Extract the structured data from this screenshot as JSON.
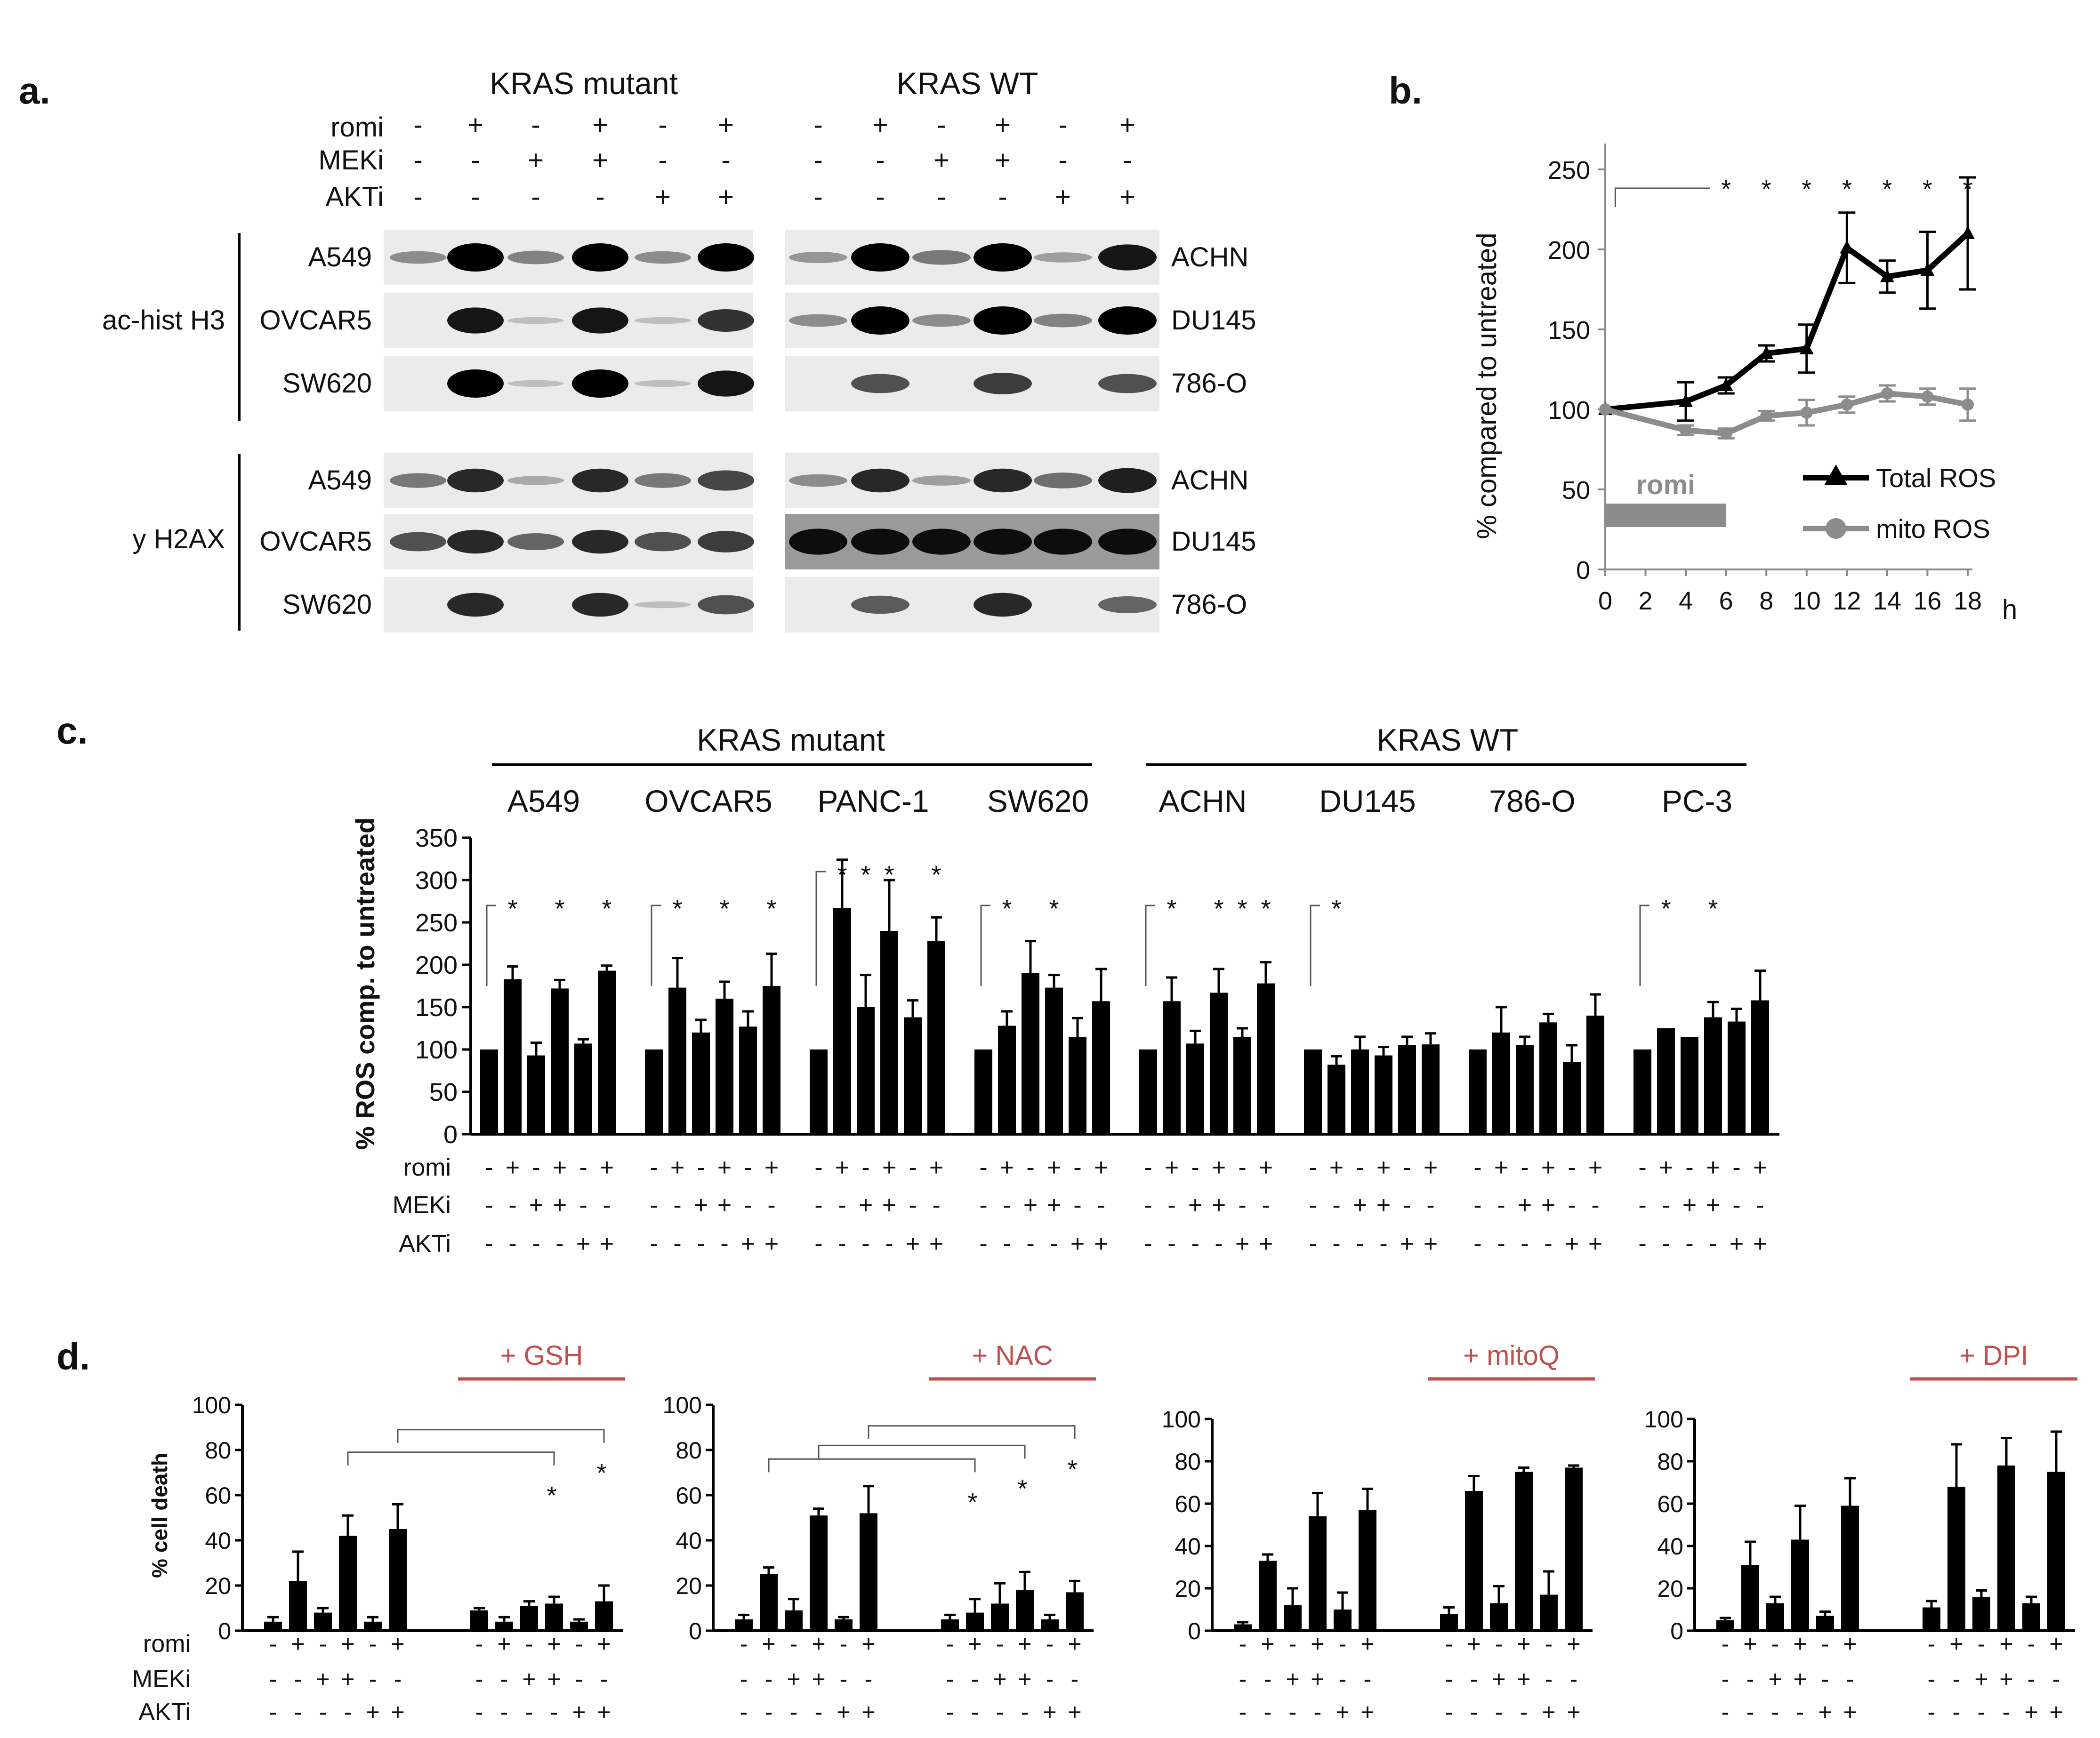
{
  "panel_labels": {
    "a": "a.",
    "b": "b.",
    "c": "c.",
    "d": "d."
  },
  "blot": {
    "groups": [
      "KRAS mutant",
      "KRAS WT"
    ],
    "treatment_labels": [
      "romi",
      "MEKi",
      "AKTi"
    ],
    "treatment_signs": [
      [
        "-",
        "+",
        "-",
        "+",
        "-",
        "+"
      ],
      [
        "-",
        "-",
        "+",
        "+",
        "-",
        "-"
      ],
      [
        "-",
        "-",
        "-",
        "-",
        "+",
        "+"
      ]
    ],
    "marker_labels": [
      "ac-hist H3",
      "y H2AX"
    ],
    "left_cells": [
      "A549",
      "OVCAR5",
      "SW620"
    ],
    "right_cells": [
      "ACHN",
      "DU145",
      "786-O"
    ],
    "band_intensity": {
      "ac-hist H3": {
        "A549": [
          0.3,
          1.0,
          0.35,
          1.0,
          0.3,
          1.0
        ],
        "OVCAR5": [
          0.0,
          0.9,
          0.05,
          0.9,
          0.05,
          0.75
        ],
        "SW620": [
          0.0,
          1.0,
          0.05,
          1.0,
          0.05,
          0.9
        ],
        "ACHN": [
          0.25,
          1.0,
          0.4,
          1.0,
          0.2,
          0.9
        ],
        "DU145": [
          0.3,
          1.0,
          0.3,
          1.0,
          0.35,
          1.0
        ],
        "786-O": [
          0.0,
          0.6,
          0.0,
          0.7,
          0.0,
          0.6
        ]
      },
      "y H2AX": {
        "A549": [
          0.4,
          0.8,
          0.15,
          0.8,
          0.4,
          0.65
        ],
        "OVCAR5": [
          0.6,
          0.8,
          0.5,
          0.8,
          0.6,
          0.7
        ],
        "SW620": [
          0.0,
          0.8,
          0.0,
          0.8,
          0.05,
          0.6
        ],
        "ACHN": [
          0.3,
          0.8,
          0.2,
          0.8,
          0.45,
          0.85
        ],
        "DU145": [
          0.9,
          0.9,
          0.9,
          0.9,
          0.9,
          0.9
        ],
        "786-O": [
          0.0,
          0.55,
          0.0,
          0.8,
          0.0,
          0.5
        ]
      }
    }
  },
  "chart_data": [
    {
      "panel": "b",
      "type": "line",
      "ylabel": "% compared to untreated",
      "xlabel": "h",
      "x": [
        0,
        2,
        4,
        6,
        8,
        10,
        12,
        14,
        16,
        18
      ],
      "xticks": [
        "0",
        "2",
        "4",
        "6",
        "8",
        "10",
        "12",
        "14",
        "16",
        "18"
      ],
      "ylim": [
        0,
        250
      ],
      "yticks": [
        "0",
        "50",
        "100",
        "150",
        "200",
        "250"
      ],
      "treatment_bar": {
        "label": "romi",
        "from": 0,
        "to": 6
      },
      "significance": {
        "bracket_from": 0.5,
        "stars_at": [
          6,
          8,
          10,
          12,
          14,
          16,
          18
        ],
        "symbol": "*"
      },
      "series": [
        {
          "name": "Total ROS",
          "color": "#000000",
          "marker": "triangle",
          "x": [
            0,
            4,
            6,
            8,
            10,
            12,
            14,
            16,
            18
          ],
          "y": [
            100,
            105,
            115,
            135,
            138,
            201,
            183,
            187,
            210
          ],
          "err": [
            0,
            12,
            5,
            5,
            15,
            22,
            10,
            24,
            35
          ]
        },
        {
          "name": "mito ROS",
          "color": "#8c8c8c",
          "marker": "circle",
          "x": [
            0,
            4,
            6,
            8,
            10,
            12,
            14,
            16,
            18
          ],
          "y": [
            100,
            87,
            85,
            96,
            98,
            103,
            110,
            108,
            103
          ],
          "err": [
            0,
            3,
            3,
            3,
            8,
            5,
            5,
            5,
            10
          ]
        }
      ]
    },
    {
      "panel": "c",
      "type": "bar",
      "ylabel": "% ROS comp. to untreated",
      "ylim": [
        0,
        350
      ],
      "yticks": [
        "0",
        "50",
        "100",
        "150",
        "200",
        "250",
        "300",
        "350"
      ],
      "group_headers": [
        "KRAS mutant",
        "KRAS WT"
      ],
      "treatment_labels": [
        "romi",
        "MEKi",
        "AKTi"
      ],
      "treatment_signs": [
        [
          "-",
          "+",
          "-",
          "+",
          "-",
          "+"
        ],
        [
          "-",
          "-",
          "+",
          "+",
          "-",
          "-"
        ],
        [
          "-",
          "-",
          "-",
          "-",
          "+",
          "+"
        ]
      ],
      "cell_lines": [
        {
          "name": "A549",
          "values": [
            100,
            183,
            93,
            172,
            107,
            193
          ],
          "err": [
            0,
            15,
            15,
            10,
            5,
            6
          ],
          "stars": [
            1,
            3,
            5
          ]
        },
        {
          "name": "OVCAR5",
          "values": [
            100,
            173,
            120,
            160,
            127,
            175
          ],
          "err": [
            0,
            35,
            15,
            20,
            18,
            38
          ],
          "stars": [
            1,
            3,
            5
          ]
        },
        {
          "name": "PANC-1",
          "values": [
            100,
            267,
            150,
            240,
            138,
            228
          ],
          "err": [
            0,
            57,
            38,
            60,
            20,
            28
          ],
          "stars": [
            1,
            2,
            3,
            5
          ]
        },
        {
          "name": "SW620",
          "values": [
            100,
            128,
            190,
            173,
            115,
            157
          ],
          "err": [
            0,
            17,
            38,
            15,
            22,
            38
          ],
          "stars": [
            1,
            3
          ]
        },
        {
          "name": "ACHN",
          "values": [
            100,
            157,
            107,
            167,
            115,
            178
          ],
          "err": [
            0,
            28,
            15,
            28,
            10,
            25
          ],
          "stars": [
            1,
            3,
            4,
            5
          ]
        },
        {
          "name": "DU145",
          "values": [
            100,
            82,
            100,
            93,
            105,
            106
          ],
          "err": [
            0,
            10,
            15,
            10,
            10,
            13
          ],
          "stars": [
            1
          ]
        },
        {
          "name": "786-O",
          "values": [
            100,
            120,
            105,
            132,
            85,
            140
          ],
          "err": [
            0,
            30,
            10,
            10,
            20,
            25
          ],
          "stars": []
        },
        {
          "name": "PC-3",
          "values": [
            100,
            125,
            115,
            138,
            133,
            158
          ],
          "err": [
            0,
            0,
            0,
            18,
            15,
            35
          ],
          "stars": [
            1,
            3
          ]
        }
      ]
    },
    {
      "panel": "d",
      "type": "bar",
      "ylabel": "% cell death",
      "treatment_labels": [
        "romi",
        "MEKi",
        "AKTi"
      ],
      "treatment_signs": [
        [
          "-",
          "+",
          "-",
          "+",
          "-",
          "+"
        ],
        [
          "-",
          "-",
          "+",
          "+",
          "-",
          "-"
        ],
        [
          "-",
          "-",
          "-",
          "-",
          "+",
          "+"
        ]
      ],
      "subplots": [
        {
          "additive": "+ GSH",
          "ylim": [
            0,
            100
          ],
          "yticks": [
            "0",
            "20",
            "40",
            "60",
            "80",
            "100"
          ],
          "control": {
            "values": [
              4,
              22,
              8,
              42,
              4,
              45
            ],
            "err": [
              2,
              13,
              2,
              9,
              2,
              11
            ]
          },
          "treated": {
            "values": [
              9,
              4,
              11,
              12,
              4,
              13
            ],
            "err": [
              1,
              2,
              2,
              3,
              1,
              7
            ]
          },
          "brackets": [
            {
              "from": 3,
              "to": 3,
              "star": "*"
            },
            {
              "from": 5,
              "to": 5,
              "star": "*"
            }
          ]
        },
        {
          "additive": "+ NAC",
          "ylim": [
            0,
            100
          ],
          "yticks": [
            "0",
            "20",
            "40",
            "60",
            "80",
            "100"
          ],
          "control": {
            "values": [
              5,
              25,
              9,
              51,
              5,
              52
            ],
            "err": [
              2,
              3,
              5,
              3,
              1,
              12
            ]
          },
          "treated": {
            "values": [
              5,
              8,
              12,
              18,
              5,
              17
            ],
            "err": [
              2,
              6,
              9,
              8,
              2,
              5
            ]
          },
          "brackets": [
            {
              "from": 1,
              "to": 1,
              "star": "*"
            },
            {
              "from": 3,
              "to": 3,
              "star": "*"
            },
            {
              "from": 5,
              "to": 5,
              "star": "*"
            }
          ]
        },
        {
          "additive": "+ mitoQ",
          "ylim": [
            0,
            100
          ],
          "yticks": [
            "0",
            "20",
            "40",
            "60",
            "80",
            "100"
          ],
          "control": {
            "values": [
              3,
              33,
              12,
              54,
              10,
              57
            ],
            "err": [
              1,
              3,
              8,
              11,
              8,
              10
            ]
          },
          "treated": {
            "values": [
              8,
              66,
              13,
              75,
              17,
              77
            ],
            "err": [
              3,
              7,
              8,
              2,
              11,
              1
            ]
          },
          "brackets": []
        },
        {
          "additive": "+ DPI",
          "ylim": [
            0,
            100
          ],
          "yticks": [
            "0",
            "20",
            "40",
            "60",
            "80",
            "100"
          ],
          "control": {
            "values": [
              5,
              31,
              13,
              43,
              7,
              59
            ],
            "err": [
              1,
              11,
              3,
              16,
              2,
              13
            ]
          },
          "treated": {
            "values": [
              11,
              68,
              16,
              78,
              13,
              75
            ],
            "err": [
              3,
              20,
              3,
              13,
              3,
              19
            ]
          },
          "brackets": []
        }
      ]
    }
  ]
}
